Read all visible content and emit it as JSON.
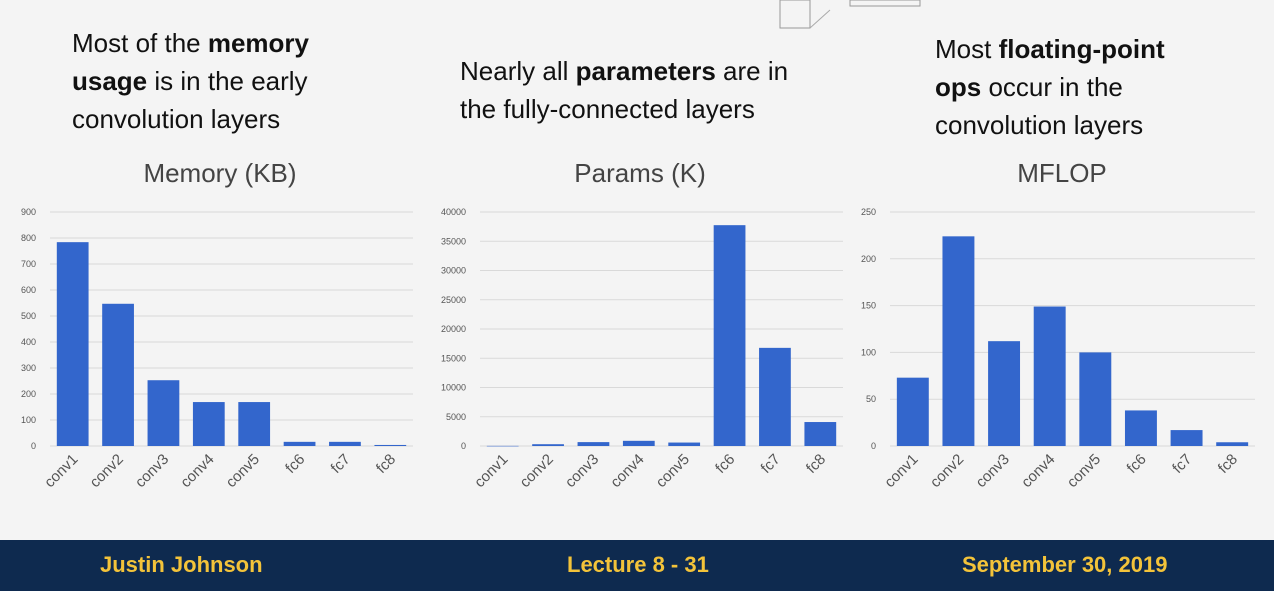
{
  "captions": {
    "memory": {
      "pre": "Most of the ",
      "bold": "memory",
      "line2_bold": "usage",
      "line2_rest": " is in the early",
      "line3": "convolution layers"
    },
    "params": {
      "line1_pre": "Nearly all ",
      "line1_bold": "parameters",
      "line1_post": " are in",
      "line2": "the fully-connected layers"
    },
    "flops": {
      "line1_pre": "Most ",
      "line1_bold": "floating-point",
      "line2_bold": "ops",
      "line2_rest": " occur in the",
      "line3": "convolution layers"
    }
  },
  "footer": {
    "author": "Justin Johnson",
    "lecture": "Lecture 8 - 31",
    "date": "September 30, 2019"
  },
  "colors": {
    "bar": "#3366cc",
    "footer_bg": "#0e2a4f",
    "footer_text": "#f3c33a"
  },
  "chart_data": [
    {
      "type": "bar",
      "title": "Memory (KB)",
      "categories": [
        "conv1",
        "conv2",
        "conv3",
        "conv4",
        "conv5",
        "fc6",
        "fc7",
        "fc8"
      ],
      "values": [
        784,
        547,
        253,
        169,
        169,
        16,
        16,
        4
      ],
      "ylim": [
        0,
        900
      ],
      "yticks": [
        0,
        100,
        200,
        300,
        400,
        500,
        600,
        700,
        800,
        900
      ],
      "grid": true
    },
    {
      "type": "bar",
      "title": "Params (K)",
      "categories": [
        "conv1",
        "conv2",
        "conv3",
        "conv4",
        "conv5",
        "fc6",
        "fc7",
        "fc8"
      ],
      "values": [
        23,
        307,
        664,
        885,
        590,
        37749,
        16777,
        4097
      ],
      "ylim": [
        0,
        40000
      ],
      "yticks": [
        0,
        5000,
        10000,
        15000,
        20000,
        25000,
        30000,
        35000,
        40000
      ],
      "grid": true
    },
    {
      "type": "bar",
      "title": "MFLOP",
      "categories": [
        "conv1",
        "conv2",
        "conv3",
        "conv4",
        "conv5",
        "fc6",
        "fc7",
        "fc8"
      ],
      "values": [
        73,
        224,
        112,
        149,
        100,
        38,
        17,
        4
      ],
      "ylim": [
        0,
        250
      ],
      "yticks": [
        0,
        50,
        100,
        150,
        200,
        250
      ],
      "grid": true
    }
  ]
}
